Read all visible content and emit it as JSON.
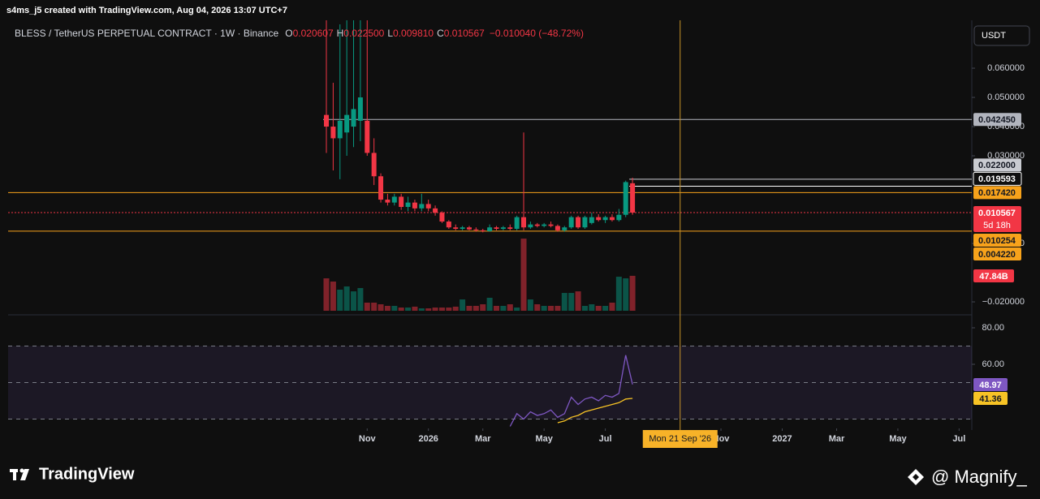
{
  "header": "s4ms_j5 created with TradingView.com, Aug 04, 2026 13:07 UTC+7",
  "footer": {
    "brand": "TradingView",
    "author": "@ Magnify_"
  },
  "chart_data": {
    "type": "candlestick",
    "title": "BLESS / TetherUS PERPETUAL CONTRACT · 1W · Binance",
    "ohlc_legend": [
      {
        "key": "O",
        "value": "0.020607"
      },
      {
        "key": "H",
        "value": "0.022500"
      },
      {
        "key": "L",
        "value": "0.009810"
      },
      {
        "key": "C",
        "value": "0.010567"
      }
    ],
    "change": "−0.010040 (−48.72%)",
    "currency": "USDT",
    "up_color": "#089981",
    "down_color": "#f23645",
    "open": [
      0.044,
      0.04,
      0.036,
      0.038,
      0.04,
      0.042,
      0.042,
      0.031,
      0.023,
      0.015,
      0.014,
      0.016,
      0.0125,
      0.014,
      0.012,
      0.0135,
      0.012,
      0.0105,
      0.0075,
      0.0055,
      0.005,
      0.0055,
      0.0048,
      0.0045,
      0.0042,
      0.0055,
      0.005,
      0.0055,
      0.005,
      0.009,
      0.0055,
      0.0065,
      0.006,
      0.0065,
      0.006,
      0.0045,
      0.0055,
      0.009,
      0.0055,
      0.007,
      0.009,
      0.008,
      0.009,
      0.008,
      0.0098,
      0.020607
    ],
    "high": [
      0.078,
      0.055,
      0.075,
      0.078,
      0.078,
      0.078,
      0.078,
      0.036,
      0.024,
      0.017,
      0.017,
      0.017,
      0.016,
      0.015,
      0.017,
      0.015,
      0.013,
      0.011,
      0.008,
      0.0065,
      0.006,
      0.006,
      0.0055,
      0.005,
      0.0065,
      0.006,
      0.006,
      0.0065,
      0.0095,
      0.038,
      0.0075,
      0.007,
      0.007,
      0.0075,
      0.0065,
      0.006,
      0.0095,
      0.0095,
      0.0095,
      0.0105,
      0.01,
      0.0095,
      0.01,
      0.0118,
      0.0215,
      0.0225
    ],
    "low": [
      0.031,
      0.025,
      0.022,
      0.03,
      0.033,
      0.035,
      0.03,
      0.02,
      0.014,
      0.013,
      0.013,
      0.0115,
      0.011,
      0.011,
      0.011,
      0.011,
      0.0095,
      0.007,
      0.005,
      0.0045,
      0.0045,
      0.0045,
      0.004,
      0.0038,
      0.004,
      0.0045,
      0.0045,
      0.0045,
      0.0045,
      0.0045,
      0.005,
      0.0055,
      0.0055,
      0.0055,
      0.004,
      0.004,
      0.005,
      0.005,
      0.005,
      0.0065,
      0.0075,
      0.007,
      0.0075,
      0.0075,
      0.009,
      0.00981
    ],
    "close": [
      0.04,
      0.036,
      0.042,
      0.044,
      0.046,
      0.05,
      0.031,
      0.023,
      0.015,
      0.014,
      0.016,
      0.0125,
      0.014,
      0.012,
      0.0135,
      0.012,
      0.0105,
      0.0075,
      0.0055,
      0.005,
      0.0055,
      0.0048,
      0.0045,
      0.0042,
      0.0055,
      0.005,
      0.0055,
      0.005,
      0.009,
      0.0055,
      0.0065,
      0.006,
      0.0065,
      0.006,
      0.0045,
      0.0055,
      0.009,
      0.0055,
      0.009,
      0.009,
      0.008,
      0.009,
      0.008,
      0.0098,
      0.021,
      0.010567
    ],
    "ylim": [
      -0.0236,
      0.0764
    ],
    "yticks": [
      {
        "value": 0.06,
        "label": "0.060000"
      },
      {
        "value": 0.05,
        "label": "0.050000"
      },
      {
        "value": 0.04,
        "label": "0.040000"
      },
      {
        "value": 0.03,
        "label": "0.030000"
      },
      0,
      {
        "value": -0.02,
        "label": "−0.020000"
      }
    ],
    "levels": [
      {
        "value": 0.04245,
        "label": "0.042450",
        "color": "#b2b5be",
        "line": "from_start"
      },
      {
        "value": 0.022,
        "label": "0.022000",
        "color": "#c9cbd1",
        "line": "from_last"
      },
      {
        "value": 0.019593,
        "label": "0.019593",
        "color": "#ffffff",
        "line": "from_last"
      },
      {
        "value": 0.01742,
        "label": "0.017420",
        "color": "#f7a21b",
        "line": "full"
      },
      {
        "value": 0.010567,
        "label": "0.010567",
        "color": "#f23645",
        "line": "dotted"
      },
      {
        "value": 0.010254,
        "label": "0.010254",
        "color": "#f7a21b",
        "line": "none"
      },
      {
        "value": 0.00422,
        "label": "0.004220",
        "color": "#f7a21b",
        "line": "full"
      }
    ],
    "current_level": 4,
    "countdown": "5d 18h",
    "volume": [
      44.4,
      40,
      28.9,
      33.3,
      26.6,
      31.1,
      11.1,
      11.1,
      8.9,
      6.7,
      6.7,
      4.4,
      4.4,
      5.6,
      3.3,
      3.3,
      4.4,
      4.4,
      4.4,
      5.6,
      15.5,
      6.7,
      6.7,
      8.9,
      17.8,
      6.7,
      6.7,
      8.9,
      4.4,
      98.8,
      15.5,
      8.9,
      6.7,
      6.7,
      6.7,
      24.4,
      24.4,
      26.6,
      6.7,
      8.9,
      6.7,
      6.7,
      11.1,
      46.6,
      44.4,
      47.84
    ],
    "volume_last_label": "47.84B",
    "rsi": {
      "values": [
        null,
        null,
        null,
        null,
        null,
        null,
        null,
        null,
        null,
        null,
        null,
        null,
        null,
        null,
        null,
        null,
        null,
        null,
        null,
        null,
        null,
        null,
        null,
        null,
        null,
        null,
        null,
        26,
        33,
        30,
        34,
        32,
        33,
        35,
        31,
        33,
        42,
        38,
        41,
        42,
        40,
        43,
        42,
        44,
        65,
        48.97
      ],
      "ma": [
        null,
        null,
        null,
        null,
        null,
        null,
        null,
        null,
        null,
        null,
        null,
        null,
        null,
        null,
        null,
        null,
        null,
        null,
        null,
        null,
        null,
        null,
        null,
        null,
        null,
        null,
        null,
        null,
        null,
        null,
        null,
        null,
        null,
        null,
        28,
        29,
        31,
        32,
        34,
        35,
        36,
        37,
        38,
        39,
        41,
        41.36
      ],
      "color": "#7e57c2",
      "ma_color": "#f7c325",
      "ylim": [
        24.9,
        84
      ],
      "yticks": [
        {
          "value": 80,
          "label": "80.00"
        },
        {
          "value": 60,
          "label": "60.00"
        }
      ],
      "bands": [
        70,
        50,
        30
      ]
    },
    "xticks": [
      {
        "value": 6,
        "label": "Nov"
      },
      {
        "value": 15,
        "label": "2026"
      },
      {
        "value": 23,
        "label": "Mar"
      },
      {
        "value": 32,
        "label": "May"
      },
      {
        "value": 41,
        "label": "Jul"
      },
      {
        "value": 58,
        "label": "Nov"
      },
      {
        "value": 67,
        "label": "2027"
      },
      {
        "value": 75,
        "label": "Mar"
      },
      {
        "value": 84,
        "label": "May"
      },
      {
        "value": 93,
        "label": "Jul"
      }
    ],
    "crosshair": {
      "value": 52,
      "label": "Mon 21 Sep '26"
    }
  }
}
